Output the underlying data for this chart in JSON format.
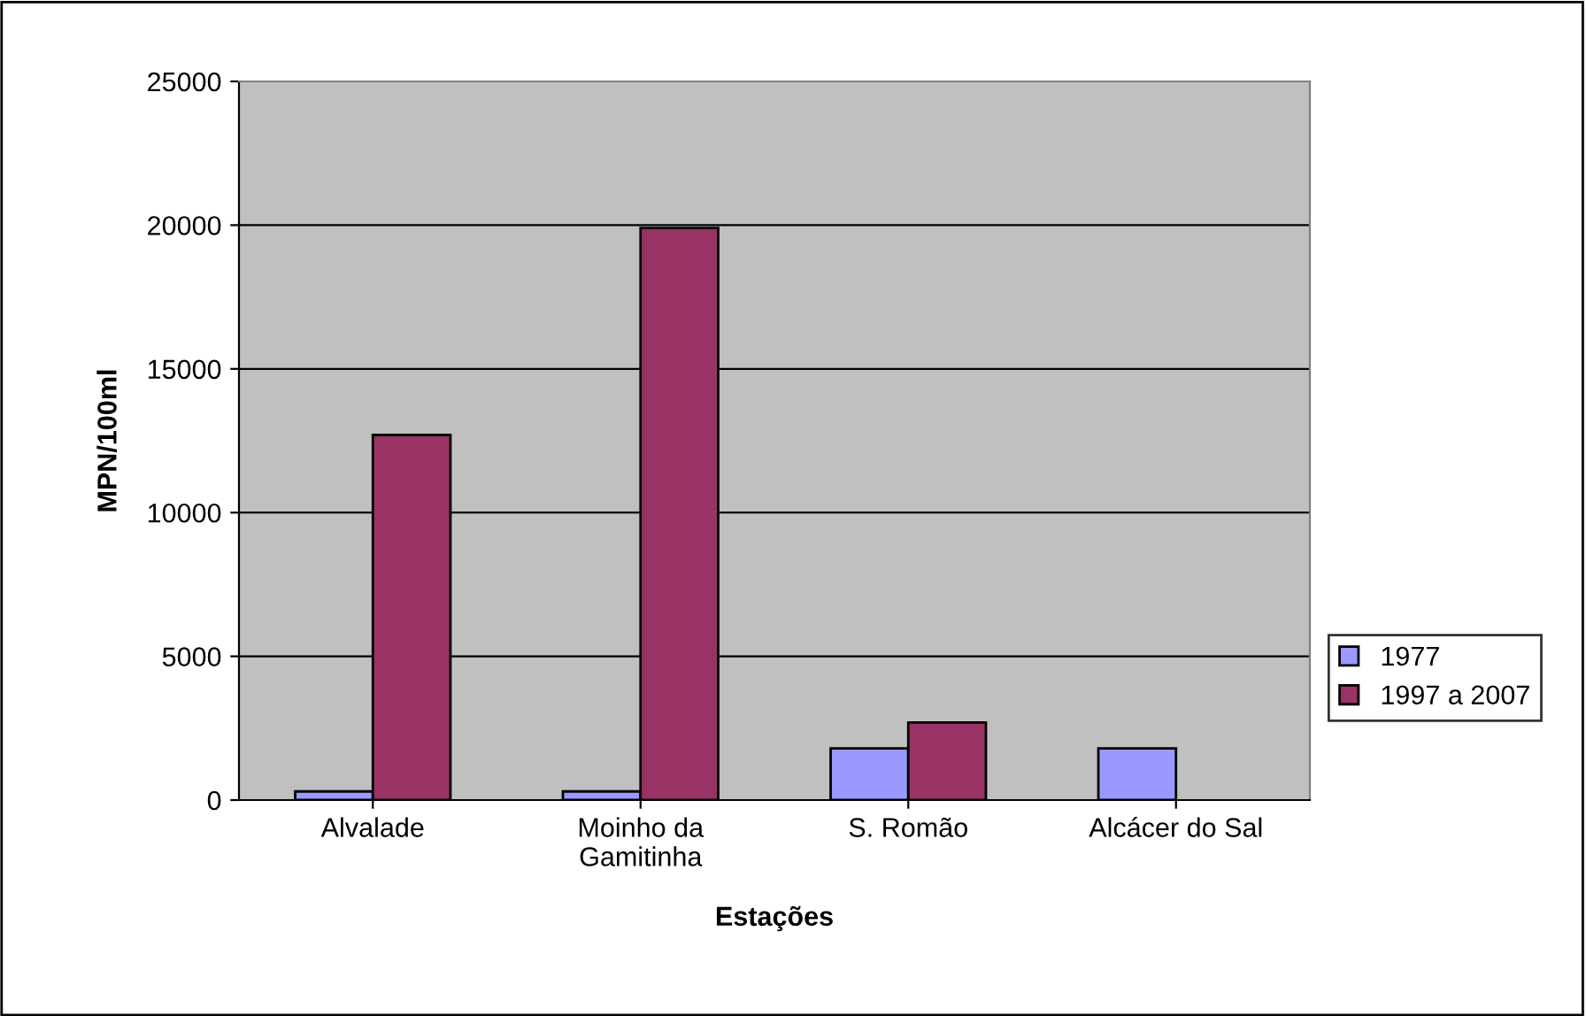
{
  "chart_data": {
    "type": "bar",
    "xlabel": "Estações",
    "ylabel": "MPN/100ml",
    "categories": [
      "Alvalade",
      "Moinho da\nGamitinha",
      "S. Romão",
      "Alcácer do Sal"
    ],
    "series": [
      {
        "name": "1977",
        "color": "#9999ff",
        "values": [
          300,
          300,
          1800,
          1800
        ]
      },
      {
        "name": "1997 a 2007",
        "color": "#993366",
        "values": [
          12700,
          19900,
          2700,
          null
        ]
      }
    ],
    "ylim": [
      0,
      25000
    ],
    "yticks": [
      0,
      5000,
      10000,
      15000,
      20000,
      25000
    ],
    "grid": "y",
    "legend": "right"
  }
}
